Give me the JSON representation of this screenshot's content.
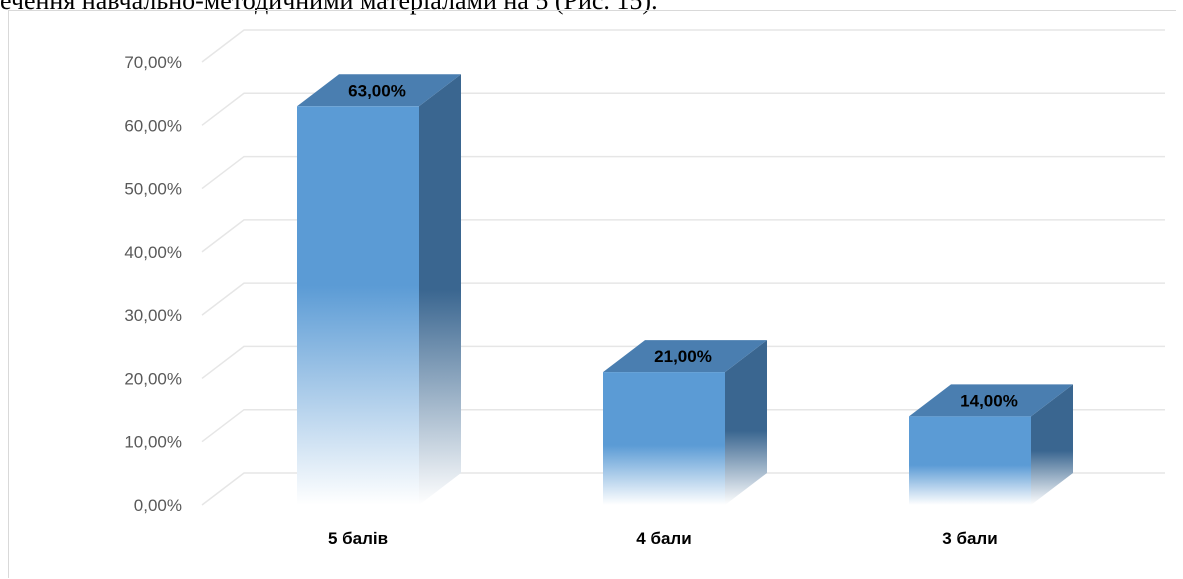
{
  "document": {
    "caption_line": "ечення навчально-методичними матеріалами на 5 (Рис. 15)."
  },
  "chart_data": {
    "type": "bar",
    "categories": [
      "5 балів",
      "4 бали",
      "3 бали"
    ],
    "values": [
      0.63,
      0.21,
      0.14
    ],
    "value_labels": [
      "63,00%",
      "21,00%",
      "14,00%"
    ],
    "yticks": [
      "0,00%",
      "10,00%",
      "20,00%",
      "30,00%",
      "40,00%",
      "50,00%",
      "60,00%",
      "70,00%"
    ],
    "ylim": [
      0,
      0.7
    ],
    "grid": true,
    "style": "3d-column",
    "colors": {
      "front": "#5b9bd5",
      "side": "#3a6690",
      "top": "#4a7eb0",
      "grid": "#e6e6e6"
    }
  }
}
